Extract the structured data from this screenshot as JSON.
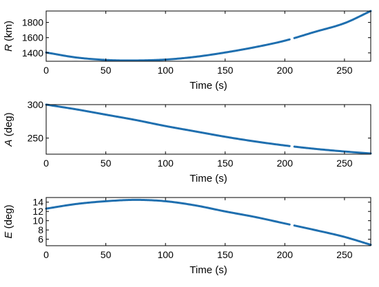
{
  "chart_data": [
    {
      "type": "scatter",
      "title": "",
      "xlabel": "Time (s)",
      "ylabel_var": "R",
      "ylabel_unit": " (km)",
      "xlim": [
        0,
        272
      ],
      "ylim": [
        1290,
        1950
      ],
      "xticks": [
        0,
        50,
        100,
        150,
        200,
        250
      ],
      "yticks": [
        1400,
        1600,
        1800
      ],
      "grid": false,
      "series": [
        {
          "color": "#1f6faf",
          "x": [
            0,
            25,
            50,
            72,
            100,
            125,
            150,
            175,
            200,
            225,
            250,
            272
          ],
          "y": [
            1405,
            1340,
            1307,
            1300,
            1312,
            1348,
            1405,
            1475,
            1560,
            1675,
            1790,
            1950
          ],
          "gaps": [
            [
              204,
              208
            ]
          ]
        }
      ]
    },
    {
      "type": "scatter",
      "title": "",
      "xlabel": "Time (s)",
      "ylabel_var": "A",
      "ylabel_unit": " (deg)",
      "xlim": [
        0,
        272
      ],
      "ylim": [
        226,
        300
      ],
      "xticks": [
        0,
        50,
        100,
        150,
        200,
        250
      ],
      "yticks": [
        250,
        300
      ],
      "grid": false,
      "series": [
        {
          "color": "#1f6faf",
          "x": [
            0,
            25,
            50,
            75,
            100,
            125,
            150,
            175,
            200,
            225,
            250,
            272
          ],
          "y": [
            300,
            293,
            285,
            277,
            268,
            260,
            252,
            245,
            239,
            234,
            230,
            227
          ],
          "gaps": [
            [
              204,
              208
            ]
          ]
        }
      ]
    },
    {
      "type": "scatter",
      "title": "",
      "xlabel": "Time (s)",
      "ylabel_var": "E",
      "ylabel_unit": " (deg)",
      "xlim": [
        0,
        272
      ],
      "ylim": [
        4.6,
        15
      ],
      "xticks": [
        0,
        50,
        100,
        150,
        200,
        250
      ],
      "yticks": [
        6,
        8,
        10,
        12,
        14
      ],
      "grid": false,
      "series": [
        {
          "color": "#1f6faf",
          "x": [
            0,
            25,
            50,
            75,
            100,
            125,
            150,
            175,
            200,
            225,
            250,
            272
          ],
          "y": [
            12.6,
            13.6,
            14.2,
            14.5,
            14.2,
            13.3,
            12.0,
            10.8,
            9.4,
            8.0,
            6.5,
            4.8
          ],
          "gaps": [
            [
              204,
              208
            ]
          ]
        }
      ]
    }
  ]
}
